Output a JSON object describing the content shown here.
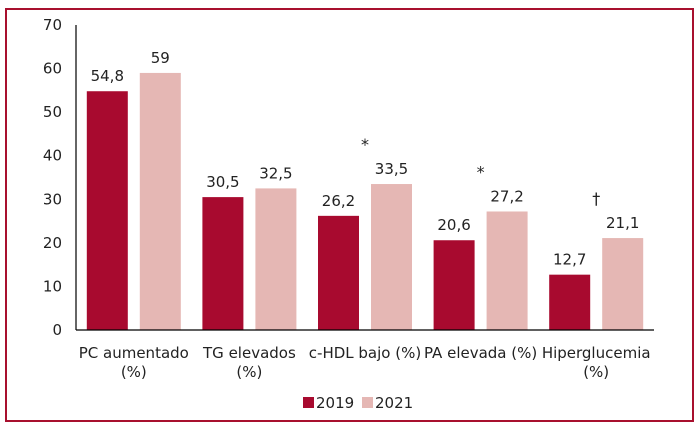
{
  "chart_data": {
    "type": "bar",
    "title": "",
    "xlabel": "",
    "ylabel": "",
    "ylim": [
      0,
      70
    ],
    "yticks": [
      0,
      10,
      20,
      30,
      40,
      50,
      60,
      70
    ],
    "grid": false,
    "legend_placement": "bottom",
    "categories": [
      [
        "PC aumentado",
        "(%)"
      ],
      [
        "TG elevados",
        "(%)"
      ],
      [
        "c-HDL bajo (%)"
      ],
      [
        "PA elevada (%)"
      ],
      [
        "Hiperglucemia",
        "(%)"
      ]
    ],
    "series": [
      {
        "name": "2019",
        "color": "#a80a2f",
        "values": [
          54.8,
          30.5,
          26.2,
          20.6,
          12.7
        ],
        "labels": [
          "54,8",
          "30,5",
          "26,2",
          "20,6",
          "12,7"
        ]
      },
      {
        "name": "2021",
        "color": "#e5b7b4",
        "values": [
          59,
          32.5,
          33.5,
          27.2,
          21.1
        ],
        "labels": [
          "59",
          "32,5",
          "33,5",
          "27,2",
          "21,1"
        ]
      }
    ],
    "annotations": [
      "",
      "",
      "*",
      "*",
      "†"
    ],
    "frame_color": "#a8102e"
  }
}
